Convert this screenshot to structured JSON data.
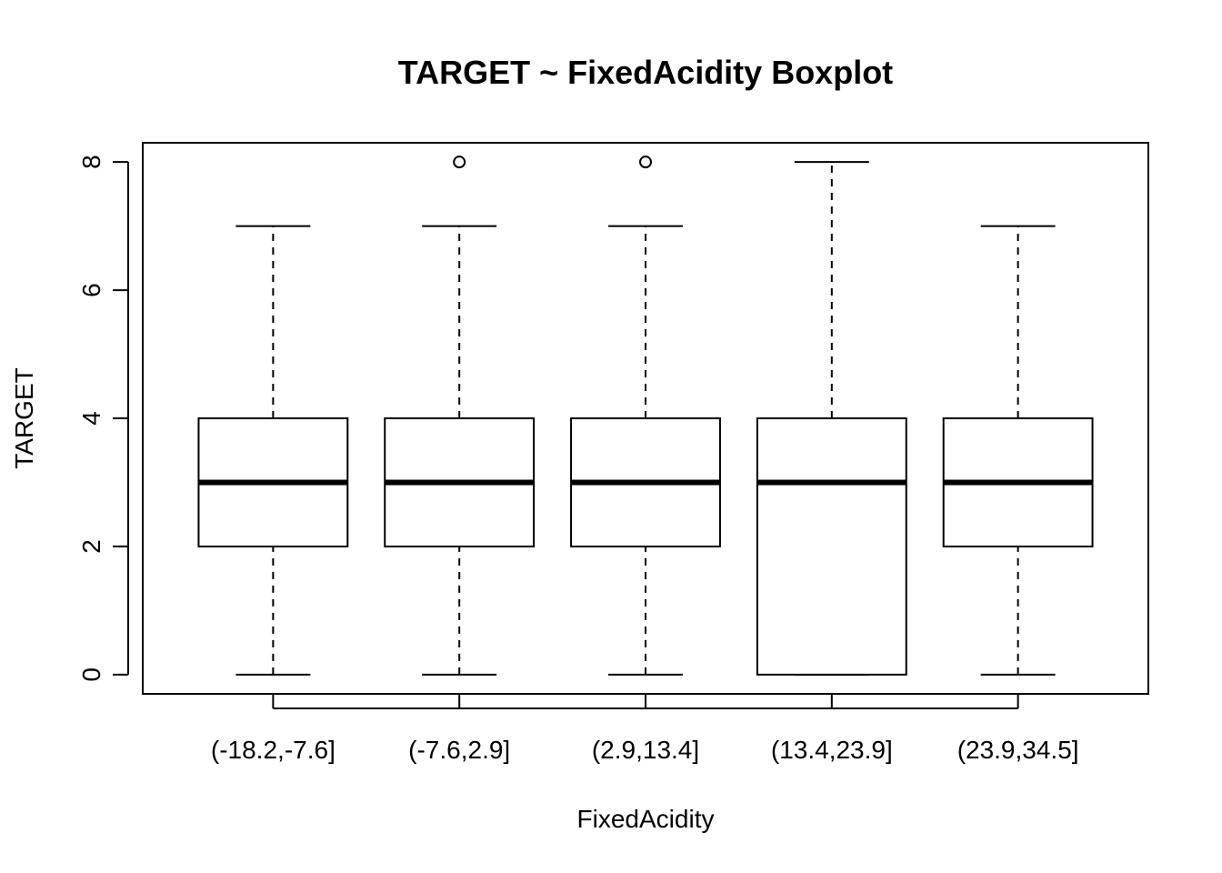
{
  "chart_data": {
    "type": "boxplot",
    "title": "TARGET ~ FixedAcidity Boxplot",
    "xlabel": "FixedAcidity",
    "ylabel": "TARGET",
    "ylim": [
      -0.3,
      8.3
    ],
    "yticks": [
      0,
      2,
      4,
      6,
      8
    ],
    "ytick_labels": [
      "0",
      "2",
      "4",
      "6",
      "8"
    ],
    "grid": false,
    "categories": [
      "(-18.2,-7.6]",
      "(-7.6,2.9]",
      "(2.9,13.4]",
      "(13.4,23.9]",
      "(23.9,34.5]"
    ],
    "boxes": [
      {
        "whisker_low": 0,
        "q1": 2,
        "median": 3,
        "q3": 4,
        "whisker_high": 7,
        "outliers": []
      },
      {
        "whisker_low": 0,
        "q1": 2,
        "median": 3,
        "q3": 4,
        "whisker_high": 7,
        "outliers": [
          8
        ]
      },
      {
        "whisker_low": 0,
        "q1": 2,
        "median": 3,
        "q3": 4,
        "whisker_high": 7,
        "outliers": [
          8
        ]
      },
      {
        "whisker_low": 0,
        "q1": 0,
        "median": 3,
        "q3": 4,
        "whisker_high": 8,
        "outliers": []
      },
      {
        "whisker_low": 0,
        "q1": 2,
        "median": 3,
        "q3": 4,
        "whisker_high": 7,
        "outliers": []
      }
    ],
    "colors": {
      "stroke": "#000000",
      "box_fill": "#ffffff"
    }
  }
}
